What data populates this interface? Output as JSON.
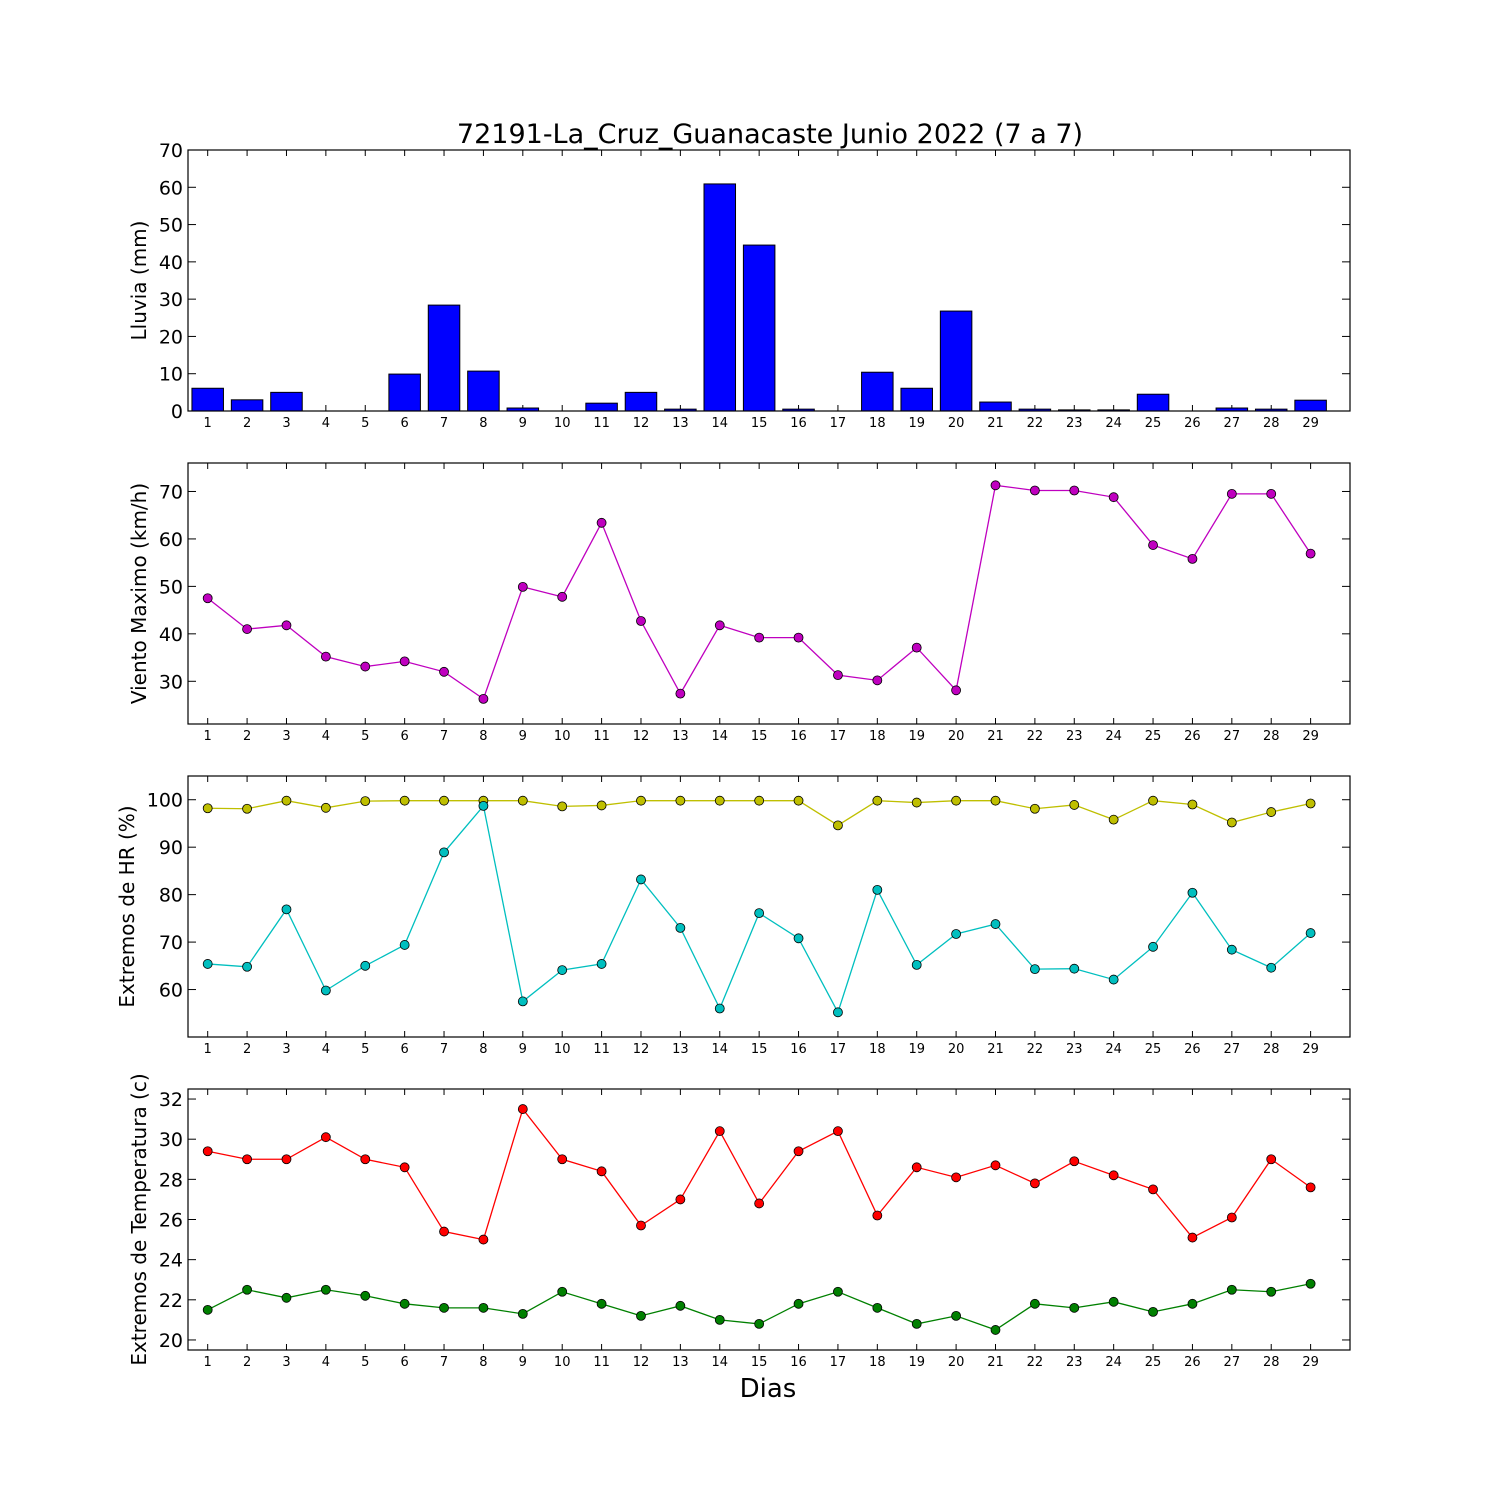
{
  "figure": {
    "title": "72191-La_Cruz_Guanacaste Junio 2022  (7 a 7)",
    "xlabel": "Dias"
  },
  "chart_data": [
    {
      "type": "bar",
      "ylabel": "Lluvia (mm)",
      "ylim": [
        0,
        70
      ],
      "yticks": [
        0,
        10,
        20,
        30,
        40,
        50,
        60,
        70
      ],
      "categories": [
        "1",
        "2",
        "3",
        "4",
        "5",
        "6",
        "7",
        "8",
        "9",
        "10",
        "11",
        "12",
        "13",
        "14",
        "15",
        "16",
        "17",
        "18",
        "19",
        "20",
        "21",
        "22",
        "23",
        "24",
        "25",
        "26",
        "27",
        "28",
        "29"
      ],
      "series": [
        {
          "color": "#0000ff",
          "values": [
            6.1,
            3.0,
            5.0,
            0.0,
            0.0,
            9.9,
            28.4,
            10.7,
            0.8,
            0.0,
            2.1,
            5.0,
            0.5,
            60.9,
            44.5,
            0.5,
            0.0,
            10.4,
            6.1,
            26.8,
            2.4,
            0.5,
            0.3,
            0.3,
            4.5,
            0.0,
            0.8,
            0.5,
            2.9
          ]
        }
      ],
      "grid": false
    },
    {
      "type": "line",
      "ylabel": "Viento Maximo (km/h)",
      "ylim": [
        21,
        76
      ],
      "yticks": [
        30,
        40,
        50,
        60,
        70
      ],
      "categories": [
        "1",
        "2",
        "3",
        "4",
        "5",
        "6",
        "7",
        "8",
        "9",
        "10",
        "11",
        "12",
        "13",
        "14",
        "15",
        "16",
        "17",
        "18",
        "19",
        "20",
        "21",
        "22",
        "23",
        "24",
        "25",
        "26",
        "27",
        "28",
        "29"
      ],
      "series": [
        {
          "color": "#bf00bf",
          "values": [
            47.5,
            41.0,
            41.8,
            35.2,
            33.1,
            34.2,
            32.0,
            26.3,
            49.9,
            47.8,
            63.4,
            42.7,
            27.4,
            41.8,
            39.2,
            39.2,
            31.3,
            30.2,
            37.1,
            28.1,
            71.3,
            70.2,
            70.2,
            68.8,
            58.7,
            55.8,
            69.5,
            69.5,
            56.9
          ]
        }
      ],
      "grid": false
    },
    {
      "type": "line",
      "ylabel": "Extremos de HR (%)",
      "ylim": [
        50,
        105
      ],
      "yticks": [
        60,
        70,
        80,
        90,
        100
      ],
      "categories": [
        "1",
        "2",
        "3",
        "4",
        "5",
        "6",
        "7",
        "8",
        "9",
        "10",
        "11",
        "12",
        "13",
        "14",
        "15",
        "16",
        "17",
        "18",
        "19",
        "20",
        "21",
        "22",
        "23",
        "24",
        "25",
        "26",
        "27",
        "28",
        "29"
      ],
      "series": [
        {
          "color": "#bfbf00",
          "values": [
            98.2,
            98.1,
            99.8,
            98.3,
            99.7,
            99.8,
            99.8,
            99.8,
            99.8,
            98.6,
            98.8,
            99.8,
            99.8,
            99.8,
            99.8,
            99.8,
            94.6,
            99.8,
            99.4,
            99.8,
            99.8,
            98.1,
            98.9,
            95.8,
            99.8,
            99.0,
            95.2,
            97.4,
            99.2
          ]
        },
        {
          "color": "#00bfbf",
          "values": [
            65.4,
            64.8,
            76.9,
            59.8,
            65.0,
            69.4,
            88.9,
            98.7,
            57.5,
            64.1,
            65.4,
            83.2,
            73.0,
            56.0,
            76.1,
            70.8,
            55.2,
            81.0,
            65.2,
            71.7,
            73.8,
            64.3,
            64.4,
            62.1,
            69.0,
            80.4,
            68.4,
            64.6,
            71.9
          ]
        }
      ],
      "grid": false
    },
    {
      "type": "line",
      "ylabel": "Extremos de Temperatura (c)",
      "ylim": [
        19.5,
        32.5
      ],
      "yticks": [
        20,
        22,
        24,
        26,
        28,
        30,
        32
      ],
      "categories": [
        "1",
        "2",
        "3",
        "4",
        "5",
        "6",
        "7",
        "8",
        "9",
        "10",
        "11",
        "12",
        "13",
        "14",
        "15",
        "16",
        "17",
        "18",
        "19",
        "20",
        "21",
        "22",
        "23",
        "24",
        "25",
        "26",
        "27",
        "28",
        "29"
      ],
      "series": [
        {
          "color": "#ff0000",
          "values": [
            29.4,
            29.0,
            29.0,
            30.1,
            29.0,
            28.6,
            25.4,
            25.0,
            31.5,
            29.0,
            28.4,
            25.7,
            27.0,
            30.4,
            26.8,
            29.4,
            30.4,
            26.2,
            28.6,
            28.1,
            28.7,
            27.8,
            28.9,
            28.2,
            27.5,
            25.1,
            26.1,
            29.0,
            27.6
          ]
        },
        {
          "color": "#008000",
          "values": [
            21.5,
            22.5,
            22.1,
            22.5,
            22.2,
            21.8,
            21.6,
            21.6,
            21.3,
            22.4,
            21.8,
            21.2,
            21.7,
            21.0,
            20.8,
            21.8,
            22.4,
            21.6,
            20.8,
            21.2,
            20.5,
            21.8,
            21.6,
            21.9,
            21.4,
            21.8,
            22.5,
            22.4,
            22.8
          ]
        }
      ],
      "grid": false
    }
  ]
}
